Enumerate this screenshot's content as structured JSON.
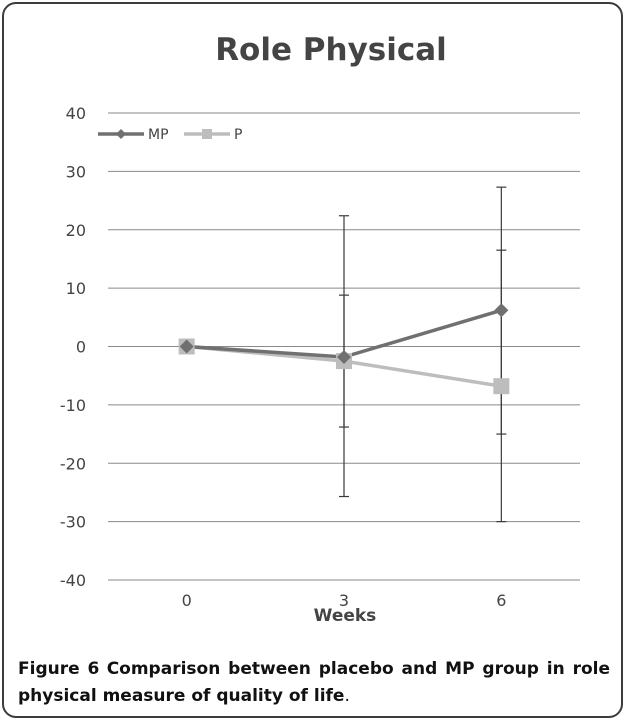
{
  "chart_data": {
    "type": "line",
    "title": "Role Physical",
    "xlabel": "Weeks",
    "ylabel": "",
    "categories": [
      "0",
      "3",
      "6"
    ],
    "ylim": [
      -40,
      40
    ],
    "yticks": [
      40,
      30,
      20,
      10,
      0,
      -10,
      -20,
      -30,
      -40
    ],
    "grid": true,
    "legend": "top-left",
    "series": [
      {
        "name": "MP",
        "values": [
          0,
          -1.8,
          6.2
        ],
        "error_low": [
          0,
          -13.8,
          -15
        ],
        "error_high": [
          0,
          8.8,
          27.3
        ],
        "color": "#707070",
        "marker": "diamond"
      },
      {
        "name": "P",
        "values": [
          0,
          -2.5,
          -6.8
        ],
        "error_low": [
          0,
          -25.7,
          -30
        ],
        "error_high": [
          0,
          22.4,
          16.5
        ],
        "color": "#bdbdbd",
        "marker": "square"
      }
    ]
  },
  "caption": {
    "lead": "Figure 6",
    "text": "Comparison between placebo and MP group in role physical measure of quality of life",
    "end": "."
  },
  "colors": {
    "axis": "#8a8a8a",
    "grid": "#8a8a8a",
    "text": "#444444",
    "errorbar": "#3a3a3a"
  }
}
